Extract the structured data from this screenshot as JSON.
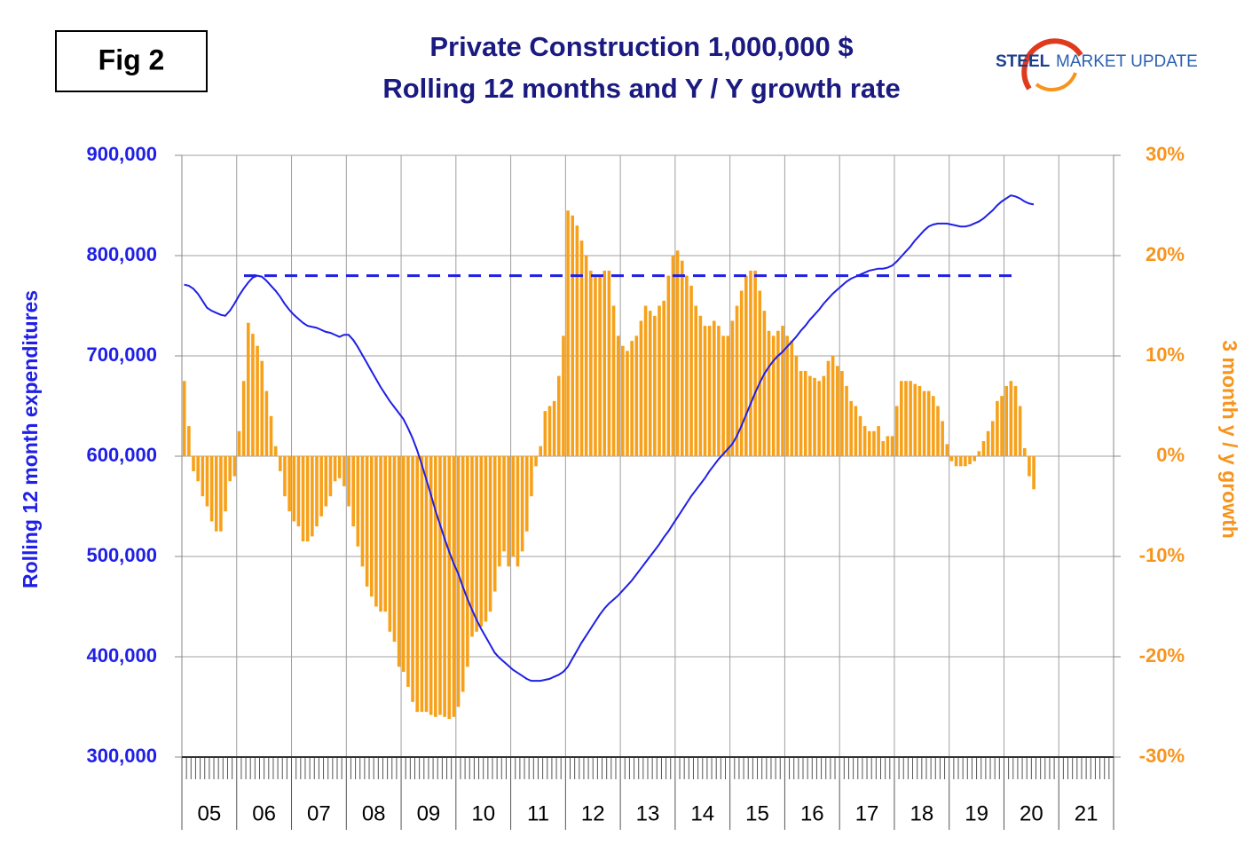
{
  "chart_data": {
    "type": "bar-line",
    "figure_label": "Fig 2",
    "title": "Private Construction 1,000,000 $",
    "subtitle": "Rolling 12 months and Y / Y growth rate",
    "logo": {
      "bold": "STEEL",
      "regular": "MARKET UPDATE"
    },
    "ylabel": "Rolling 12 month expenditures",
    "y2label": "3 month y / y growth",
    "categories": [
      null,
      null,
      null,
      null,
      null,
      null,
      "05",
      null,
      null,
      null,
      null,
      null,
      null,
      null,
      null,
      null,
      null,
      null,
      "06",
      null,
      null,
      null,
      null,
      null,
      null,
      null,
      null,
      null,
      null,
      null,
      "07",
      null,
      null,
      null,
      null,
      null,
      null,
      null,
      null,
      null,
      null,
      null,
      "08",
      null,
      null,
      null,
      null,
      null,
      null,
      null,
      null,
      null,
      null,
      null,
      "09",
      null,
      null,
      null,
      null,
      null,
      null,
      null,
      null,
      null,
      null,
      null,
      "10",
      null,
      null,
      null,
      null,
      null,
      null,
      null,
      null,
      null,
      null,
      null,
      "11",
      null,
      null,
      null,
      null,
      null,
      null,
      null,
      null,
      null,
      null,
      null,
      "12",
      null,
      null,
      null,
      null,
      null,
      null,
      null,
      null,
      null,
      null,
      null,
      "13",
      null,
      null,
      null,
      null,
      null,
      null,
      null,
      null,
      null,
      null,
      null,
      "14",
      null,
      null,
      null,
      null,
      null,
      null,
      null,
      null,
      null,
      null,
      null,
      "15",
      null,
      null,
      null,
      null,
      null,
      null,
      null,
      null,
      null,
      null,
      null,
      "16",
      null,
      null,
      null,
      null,
      null,
      null,
      null,
      null,
      null,
      null,
      null,
      "17",
      null,
      null,
      null,
      null,
      null,
      null,
      null,
      null,
      null,
      null,
      null,
      "18",
      null,
      null,
      null,
      null,
      null,
      null,
      null,
      null,
      null,
      null,
      null,
      "19",
      null,
      null,
      null,
      null,
      null,
      null,
      null,
      null,
      null,
      null,
      null,
      "20",
      null,
      null,
      null,
      null,
      null,
      null,
      null,
      null,
      null,
      null,
      null,
      "21",
      null,
      null,
      null,
      null,
      null
    ],
    "series": [
      {
        "kind": "bar",
        "axis": "y2",
        "color": "#f7a11a",
        "values": [
          7.5,
          3,
          -1.5,
          -2.5,
          -4,
          -5,
          -6.5,
          -7.5,
          -7.5,
          -5.5,
          -2.5,
          -2,
          2.5,
          7.5,
          13.3,
          12.2,
          11,
          9.5,
          6.5,
          4,
          1,
          -1.5,
          -4,
          -5.5,
          -6.5,
          -7,
          -8.5,
          -8.5,
          -8,
          -7,
          -6,
          -5,
          -4,
          -2.5,
          -2.2,
          -3,
          -5,
          -7,
          -9,
          -11,
          -13,
          -14,
          -15,
          -15.5,
          -15.5,
          -17.5,
          -18.5,
          -21,
          -21.5,
          -23,
          -24.5,
          -25.5,
          -25.5,
          -25.5,
          -25.8,
          -26,
          -25.8,
          -26,
          -26.2,
          -26,
          -25,
          -23.5,
          -21,
          -18,
          -17.5,
          -17,
          -16.5,
          -15.5,
          -13.5,
          -11,
          -9.5,
          -11,
          -10,
          -11,
          -9.5,
          -7.5,
          -4,
          -1,
          1,
          4.5,
          5,
          5.5,
          8,
          12,
          24.5,
          24,
          23,
          21.5,
          20,
          18.5,
          18,
          18,
          18.5,
          18.5,
          15,
          12,
          11,
          10.5,
          11.5,
          12,
          13.5,
          15,
          14.5,
          14,
          15,
          15.5,
          18,
          20,
          20.5,
          19.5,
          18,
          17,
          15,
          14,
          13,
          13,
          13.5,
          13,
          12,
          12,
          13.5,
          15,
          16.5,
          18,
          18.5,
          18.5,
          16.5,
          14.5,
          12.5,
          12,
          12.5,
          13,
          12,
          11.5,
          10,
          8.5,
          8.5,
          8,
          7.8,
          7.5,
          8,
          9.5,
          10,
          9,
          8.5,
          7,
          5.5,
          5,
          4,
          3,
          2.5,
          2.5,
          3,
          1.5,
          2,
          2,
          5,
          7.5,
          7.5,
          7.5,
          7.2,
          7,
          6.5,
          6.5,
          6,
          5,
          3.5,
          1.2,
          -0.5,
          -1,
          -1,
          -1,
          -0.8,
          -0.5,
          0.5,
          1.5,
          2.5,
          3.5,
          5.5,
          6,
          7,
          7.5,
          7,
          5,
          0.8,
          -2,
          -3.3,
          null,
          null,
          null,
          null,
          null,
          null,
          null,
          null,
          null,
          null,
          null,
          null,
          null,
          null,
          null,
          null,
          null
        ]
      },
      {
        "kind": "line",
        "axis": "y",
        "color": "#1f1fe6",
        "values": [
          771000,
          770000,
          767000,
          762000,
          755000,
          748000,
          745000,
          743000,
          741000,
          740000,
          745000,
          752000,
          760000,
          767000,
          773000,
          778000,
          780000,
          779000,
          775000,
          770000,
          765000,
          759000,
          752000,
          746000,
          741000,
          737000,
          733000,
          730000,
          729000,
          728000,
          726000,
          724000,
          723000,
          721000,
          719000,
          721000,
          721000,
          716000,
          709000,
          701000,
          693000,
          685000,
          677000,
          669000,
          662000,
          655000,
          649000,
          643000,
          637000,
          628000,
          618000,
          606000,
          592000,
          577000,
          562000,
          546000,
          532000,
          518000,
          505000,
          493000,
          483000,
          470000,
          458000,
          447000,
          437000,
          428000,
          420000,
          412000,
          404000,
          399000,
          395000,
          391000,
          387000,
          384000,
          381000,
          378000,
          376000,
          376000,
          376000,
          377000,
          378000,
          380000,
          382000,
          385000,
          390000,
          398000,
          406000,
          414000,
          421000,
          428000,
          435000,
          442000,
          448000,
          453000,
          457000,
          461000,
          466000,
          471000,
          476000,
          482000,
          488000,
          494000,
          500000,
          506000,
          512000,
          519000,
          525000,
          532000,
          539000,
          546000,
          553000,
          560000,
          566000,
          572000,
          578000,
          585000,
          591000,
          597000,
          602000,
          607000,
          612000,
          620000,
          630000,
          641000,
          652000,
          663000,
          673000,
          682000,
          689000,
          695000,
          700000,
          704000,
          709000,
          714000,
          719000,
          725000,
          730000,
          736000,
          741000,
          746000,
          752000,
          757000,
          762000,
          766000,
          770000,
          774000,
          777000,
          779000,
          781000,
          783000,
          785000,
          786000,
          787000,
          787000,
          788000,
          790000,
          794000,
          799000,
          804000,
          809000,
          815000,
          820000,
          825000,
          829000,
          831000,
          832000,
          832000,
          832000,
          831000,
          830000,
          829000,
          829000,
          830000,
          832000,
          834000,
          837000,
          841000,
          845000,
          850000,
          854000,
          857000,
          860000,
          859000,
          857000,
          854000,
          852000,
          851000,
          null,
          null,
          null,
          null,
          null,
          null,
          null,
          null,
          null,
          null,
          null,
          null,
          null,
          null,
          null,
          null,
          null
        ]
      }
    ],
    "reference_line": {
      "value": 780000,
      "axis": "y",
      "color": "#1f1fe6",
      "dashed": true
    },
    "ylim": [
      300000,
      900000
    ],
    "yticks": [
      {
        "value": 300000,
        "label": "300,000"
      },
      {
        "value": 400000,
        "label": "400,000"
      },
      {
        "value": 500000,
        "label": "500,000"
      },
      {
        "value": 600000,
        "label": "600,000"
      },
      {
        "value": 700000,
        "label": "700,000"
      },
      {
        "value": 800000,
        "label": "800,000"
      },
      {
        "value": 900000,
        "label": "900,000"
      }
    ],
    "y2lim": [
      -30,
      30
    ],
    "y2ticks": [
      {
        "value": -30,
        "label": "-30%"
      },
      {
        "value": -20,
        "label": "-20%"
      },
      {
        "value": -10,
        "label": "-10%"
      },
      {
        "value": 0,
        "label": "0%"
      },
      {
        "value": 10,
        "label": "10%"
      },
      {
        "value": 20,
        "label": "20%"
      },
      {
        "value": 30,
        "label": "30%"
      }
    ],
    "grid": true
  }
}
